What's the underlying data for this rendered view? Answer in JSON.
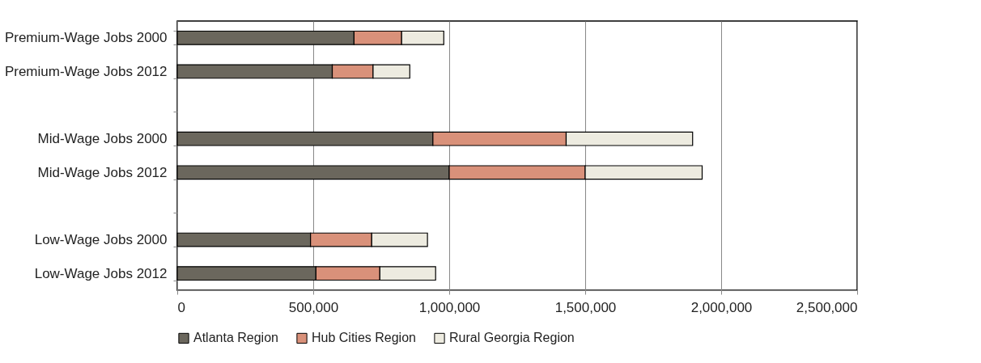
{
  "chart_data": {
    "type": "bar",
    "orientation": "horizontal",
    "stacked": true,
    "categories": [
      "Premium-Wage Jobs 2000",
      "Premium-Wage Jobs 2012",
      null,
      "Mid-Wage Jobs 2000",
      "Mid-Wage Jobs 2012",
      null,
      "Low-Wage Jobs 2000",
      "Low-Wage Jobs 2012"
    ],
    "series": [
      {
        "name": "Atlanta Region",
        "color": "#6b675d",
        "values": [
          650000,
          570000,
          null,
          940000,
          1000000,
          null,
          490000,
          510000
        ]
      },
      {
        "name": "Hub Cities Region",
        "color": "#d9917a",
        "values": [
          175000,
          150000,
          null,
          490000,
          500000,
          null,
          225000,
          235000
        ]
      },
      {
        "name": "Rural Georgia Region",
        "color": "#edebe0",
        "values": [
          155000,
          135000,
          null,
          465000,
          430000,
          null,
          205000,
          205000
        ]
      }
    ],
    "xlim": [
      0,
      2500000
    ],
    "xticks": [
      0,
      {
        "value": 500000,
        "label": "500,000"
      },
      {
        "value": 1000000,
        "label": "1,000,000"
      },
      {
        "value": 1500000,
        "label": "1,500,000"
      },
      {
        "value": 2000000,
        "label": "2,000,000"
      },
      {
        "value": 2500000,
        "label": "2,500,000"
      }
    ],
    "grid": "x",
    "legend": "bottom"
  }
}
